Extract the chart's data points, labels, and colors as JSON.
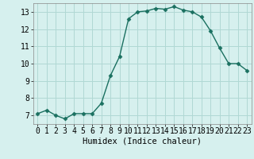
{
  "x": [
    0,
    1,
    2,
    3,
    4,
    5,
    6,
    7,
    8,
    9,
    10,
    11,
    12,
    13,
    14,
    15,
    16,
    17,
    18,
    19,
    20,
    21,
    22,
    23
  ],
  "y": [
    7.1,
    7.3,
    7.0,
    6.8,
    7.1,
    7.1,
    7.1,
    7.7,
    9.3,
    10.4,
    12.6,
    13.0,
    13.05,
    13.2,
    13.15,
    13.3,
    13.1,
    13.0,
    12.7,
    11.9,
    10.9,
    10.0,
    10.0,
    9.6
  ],
  "xlabel": "Humidex (Indice chaleur)",
  "ylim": [
    6.5,
    13.5
  ],
  "xlim": [
    -0.5,
    23.5
  ],
  "yticks": [
    7,
    8,
    9,
    10,
    11,
    12,
    13
  ],
  "xtick_labels": [
    "0",
    "1",
    "2",
    "3",
    "4",
    "5",
    "6",
    "7",
    "8",
    "9",
    "10",
    "11",
    "12",
    "13",
    "14",
    "15",
    "16",
    "17",
    "18",
    "19",
    "20",
    "21",
    "22",
    "23"
  ],
  "line_color": "#1a7060",
  "marker": "D",
  "marker_size": 2.5,
  "bg_color": "#d6f0ee",
  "grid_color": "#b0d8d4",
  "xlabel_fontsize": 7.5,
  "tick_fontsize": 7,
  "linewidth": 1.0
}
